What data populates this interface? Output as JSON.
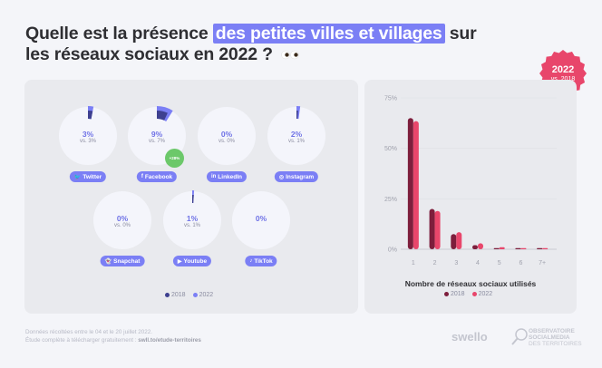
{
  "title": {
    "part1": "Quelle est la présence ",
    "highlight": "des petites villes et villages",
    "part2": " sur",
    "line2": "les réseaux sociaux en 2022 ?",
    "emoji": "eyes"
  },
  "badge": {
    "year": "2022",
    "vs": "vs. 2018",
    "color": "#e8466b"
  },
  "colors": {
    "y2018_donut": "#3e4090",
    "y2022_donut": "#7b7ff5",
    "y2018_bar": "#7d1e3c",
    "y2022_bar": "#e8466b",
    "growth": "#6cc86a"
  },
  "chart_data": [
    {
      "type": "pie",
      "series_names": [
        "2018",
        "2022"
      ],
      "networks": [
        {
          "name": "Twitter",
          "icon": "twitter-icon",
          "glyph": "🐦",
          "v2022": 3,
          "v2018": 3,
          "label": "3%",
          "vs": "vs. 3%"
        },
        {
          "name": "Facebook",
          "icon": "facebook-icon",
          "glyph": "f",
          "v2022": 9,
          "v2018": 7,
          "label": "9%",
          "vs": "vs. 7%",
          "growth": "+28%"
        },
        {
          "name": "LinkedIn",
          "icon": "linkedin-icon",
          "glyph": "in",
          "v2022": 0,
          "v2018": 0,
          "label": "0%",
          "vs": "vs. 0%"
        },
        {
          "name": "Instagram",
          "icon": "instagram-icon",
          "glyph": "◎",
          "v2022": 2,
          "v2018": 1,
          "label": "2%",
          "vs": "vs. 1%"
        },
        {
          "name": "Snapchat",
          "icon": "snapchat-icon",
          "glyph": "👻",
          "v2022": 0,
          "v2018": 0,
          "label": "0%",
          "vs": "vs. 0%"
        },
        {
          "name": "Youtube",
          "icon": "youtube-icon",
          "glyph": "▶",
          "v2022": 1,
          "v2018": 1,
          "label": "1%",
          "vs": "vs. 1%"
        },
        {
          "name": "TikTok",
          "icon": "tiktok-icon",
          "glyph": "♪",
          "v2022": 0,
          "v2018": null,
          "label": "0%",
          "vs": ""
        }
      ],
      "legend": [
        "2018",
        "2022"
      ],
      "legend_placement": "bottom"
    },
    {
      "type": "bar",
      "xlabel": "Nombre de réseaux sociaux utilisés",
      "categories": [
        "1",
        "2",
        "3",
        "4",
        "5",
        "6",
        "7+"
      ],
      "yticks": [
        "0%",
        "25%",
        "50%",
        "75%"
      ],
      "ylim": [
        0,
        75
      ],
      "grid": true,
      "series": [
        {
          "name": "2018",
          "values": [
            65,
            20,
            7.5,
            2,
            0.5,
            0.2,
            0.2
          ]
        },
        {
          "name": "2022",
          "values": [
            63.5,
            19,
            8.5,
            3,
            1,
            0.5,
            0.5
          ]
        }
      ],
      "legend_placement": "bottom"
    }
  ],
  "footer": {
    "line1": "Données récoltées entre le 04 et le 20 juillet 2022.",
    "line2": "Étude complète à télécharger gratuitement : ",
    "link": "swll.to/etude-territoires"
  },
  "logos": {
    "swello": "swello",
    "obs1": "OBSERVATOIRE",
    "obs2": "SOCIALMEDIA",
    "obs3": "DES TERRITOIRES"
  }
}
